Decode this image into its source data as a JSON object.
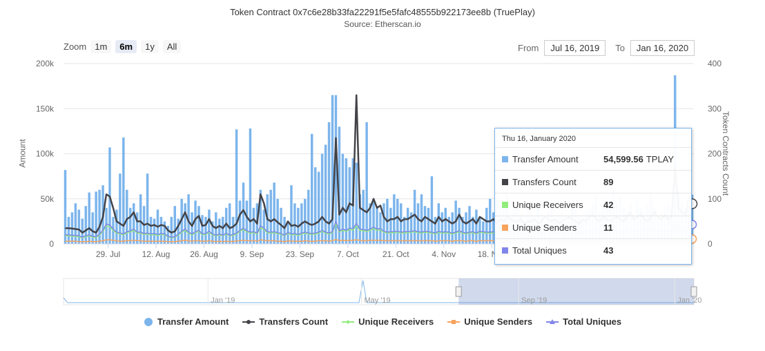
{
  "header": {
    "title": "Token Contract 0x7c6e28b33fa22291f5e5fafc48555b922173ee8b (TruePlay)",
    "subtitle": "Source: Etherscan.io"
  },
  "zoom": {
    "label": "Zoom",
    "buttons": [
      "1m",
      "6m",
      "1y",
      "All"
    ],
    "active": "6m"
  },
  "range": {
    "from_label": "From",
    "from_value": "Jul 16, 2019",
    "to_label": "To",
    "to_value": "Jan 16, 2020"
  },
  "tooltip": {
    "date": "Thu 16, January 2020",
    "rows": [
      {
        "label": "Transfer Amount",
        "value": "54,599.56",
        "unit": "TPLAY",
        "color": "#7cb5ec"
      },
      {
        "label": "Transfers Count",
        "value": "89",
        "unit": "",
        "color": "#434348"
      },
      {
        "label": "Unique Receivers",
        "value": "42",
        "unit": "",
        "color": "#90ed7d"
      },
      {
        "label": "Unique Senders",
        "value": "11",
        "unit": "",
        "color": "#f7a35c"
      },
      {
        "label": "Total Uniques",
        "value": "43",
        "unit": "",
        "color": "#8085e9"
      }
    ]
  },
  "legend": [
    {
      "label": "Transfer Amount",
      "color": "#7cb5ec",
      "kind": "circle"
    },
    {
      "label": "Transfers Count",
      "color": "#434348",
      "kind": "line"
    },
    {
      "label": "Unique Receivers",
      "color": "#90ed7d",
      "kind": "line"
    },
    {
      "label": "Unique Senders",
      "color": "#f7a35c",
      "kind": "line"
    },
    {
      "label": "Total Uniques",
      "color": "#8085e9",
      "kind": "line"
    }
  ],
  "chart_data": {
    "type": "bar",
    "ylabel_left": "Amount",
    "ylabel_right": "Token Contracts Count",
    "ylim_left": [
      0,
      200000
    ],
    "ylim_right": [
      0,
      400
    ],
    "yticks_left": [
      "0",
      "50k",
      "100k",
      "150k",
      "200k"
    ],
    "yticks_right": [
      "0",
      "100",
      "200",
      "300",
      "400"
    ],
    "xticks": [
      "29. Jul",
      "12. Aug",
      "26. Aug",
      "9. Sep",
      "23. Sep",
      "7. Oct",
      "21. Oct",
      "4. Nov",
      "18. Nov"
    ],
    "navigator_labels": [
      "Jan '19",
      "May '19",
      "Sep '19",
      "Jan '20"
    ],
    "grid": true,
    "legend_position": "bottom",
    "x_start": "2019-07-16",
    "x_end": "2020-01-16",
    "series": [
      {
        "name": "Transfer Amount",
        "axis": "left",
        "type": "bar",
        "values": [
          82000,
          30000,
          35000,
          45000,
          38000,
          28000,
          42000,
          57000,
          35000,
          58000,
          60000,
          65000,
          40000,
          107000,
          30000,
          38000,
          78000,
          118000,
          60000,
          40000,
          45000,
          35000,
          55000,
          42000,
          78000,
          30000,
          28000,
          38000,
          30000,
          25000,
          20000,
          30000,
          42000,
          28000,
          50000,
          45000,
          55000,
          35000,
          48000,
          42000,
          32000,
          30000,
          38000,
          25000,
          35000,
          28000,
          30000,
          40000,
          45000,
          30000,
          127000,
          48000,
          68000,
          48000,
          128000,
          40000,
          45000,
          60000,
          38000,
          55000,
          60000,
          68000,
          50000,
          40000,
          30000,
          25000,
          65000,
          45000,
          40000,
          45000,
          50000,
          60000,
          122000,
          85000,
          80000,
          100000,
          110000,
          135000,
          165000,
          165000,
          130000,
          100000,
          95000,
          85000,
          95000,
          90000,
          55000,
          60000,
          135000,
          45000,
          50000,
          40000,
          35000,
          45000,
          50000,
          40000,
          55000,
          50000,
          45000,
          30000,
          40000,
          35000,
          60000,
          45000,
          55000,
          42000,
          40000,
          75000,
          30000,
          45000,
          35000,
          40000,
          30000,
          35000,
          48000,
          40000,
          30000,
          35000,
          42000,
          30000,
          38000,
          30000,
          25000,
          40000,
          50000,
          35000,
          55000,
          40000,
          45000,
          55000,
          30000,
          35000,
          40000,
          30000,
          25000,
          45000,
          35000,
          30000,
          42000,
          30000,
          25000,
          35000,
          40000,
          28000,
          30000,
          35000,
          25000,
          30000,
          45000,
          38000,
          30000,
          25000,
          35000,
          40000,
          45000,
          55000,
          35000,
          40000,
          50000,
          42000,
          60000,
          45000,
          55000,
          40000,
          35000,
          45000,
          30000,
          50000,
          40000,
          35000,
          45000,
          55000,
          40000,
          30000,
          35000,
          42000,
          45000,
          38000,
          187000,
          60000,
          45000,
          40000,
          50000,
          54600
        ]
      },
      {
        "name": "Transfers Count",
        "axis": "right",
        "type": "line",
        "values": [
          35,
          35,
          34,
          33,
          32,
          25,
          30,
          35,
          28,
          25,
          38,
          60,
          110,
          105,
          80,
          50,
          45,
          40,
          55,
          60,
          70,
          50,
          50,
          42,
          45,
          40,
          42,
          38,
          42,
          40,
          30,
          25,
          28,
          40,
          55,
          70,
          50,
          40,
          55,
          62,
          40,
          42,
          55,
          40,
          35,
          40,
          35,
          45,
          35,
          38,
          45,
          65,
          75,
          60,
          50,
          55,
          45,
          110,
          90,
          55,
          50,
          55,
          48,
          42,
          35,
          50,
          40,
          42,
          38,
          45,
          50,
          45,
          42,
          45,
          50,
          60,
          50,
          45,
          55,
          235,
          65,
          80,
          70,
          90,
          85,
          330,
          80,
          75,
          70,
          80,
          100,
          80,
          85,
          60,
          50,
          55,
          55,
          60,
          50,
          55,
          55,
          60,
          65,
          55,
          50,
          60,
          55,
          50,
          45,
          60,
          50,
          55,
          50,
          45,
          50,
          65,
          50,
          45,
          50,
          55,
          45,
          60,
          55,
          50,
          50,
          55,
          45,
          55,
          50,
          60,
          55,
          50,
          50,
          55,
          45,
          50,
          50,
          55,
          45,
          50,
          60,
          55,
          50,
          55,
          45,
          50,
          55,
          60,
          55,
          50,
          45,
          55,
          50,
          60,
          65,
          55,
          50,
          60,
          55,
          50,
          55,
          60,
          55,
          50,
          60,
          70,
          55,
          60,
          65,
          55,
          50,
          60,
          70,
          60,
          55,
          65,
          55,
          60,
          170,
          80,
          70,
          65,
          90,
          89
        ]
      },
      {
        "name": "Unique Receivers",
        "axis": "right",
        "type": "line",
        "values": [
          18,
          18,
          17,
          17,
          16,
          14,
          16,
          18,
          15,
          14,
          20,
          28,
          40,
          38,
          30,
          24,
          22,
          20,
          25,
          27,
          30,
          24,
          24,
          21,
          22,
          20,
          21,
          19,
          21,
          20,
          16,
          14,
          15,
          20,
          26,
          30,
          24,
          20,
          25,
          28,
          20,
          21,
          26,
          20,
          18,
          20,
          18,
          22,
          18,
          19,
          22,
          28,
          32,
          27,
          24,
          25,
          22,
          36,
          32,
          25,
          24,
          25,
          23,
          21,
          18,
          24,
          20,
          21,
          19,
          22,
          24,
          22,
          21,
          22,
          24,
          28,
          24,
          22,
          25,
          45,
          27,
          30,
          28,
          32,
          31,
          40,
          30,
          29,
          28,
          30,
          34,
          30,
          31,
          26,
          24,
          25,
          25,
          26,
          24,
          25,
          25,
          26,
          27,
          25,
          24,
          26,
          25,
          24,
          22,
          26,
          24,
          25,
          24,
          22,
          24,
          27,
          24,
          22,
          24,
          25,
          22,
          26,
          25,
          24,
          24,
          25,
          22,
          25,
          24,
          26,
          25,
          24,
          24,
          25,
          22,
          24,
          24,
          25,
          22,
          24,
          26,
          25,
          24,
          25,
          22,
          24,
          25,
          26,
          25,
          24,
          22,
          25,
          24,
          26,
          27,
          25,
          24,
          26,
          25,
          24,
          25,
          26,
          25,
          24,
          26,
          28,
          25,
          26,
          27,
          25,
          24,
          26,
          28,
          26,
          25,
          27,
          25,
          26,
          40,
          30,
          28,
          27,
          34,
          42
        ]
      },
      {
        "name": "Unique Senders",
        "axis": "right",
        "type": "line",
        "values": [
          6,
          6,
          6,
          6,
          5,
          5,
          5,
          6,
          5,
          5,
          6,
          7,
          9,
          9,
          8,
          7,
          6,
          6,
          7,
          7,
          8,
          7,
          7,
          6,
          6,
          6,
          6,
          6,
          6,
          6,
          5,
          5,
          5,
          6,
          7,
          8,
          7,
          6,
          7,
          7,
          6,
          6,
          7,
          6,
          5,
          6,
          5,
          6,
          5,
          6,
          6,
          7,
          8,
          7,
          7,
          7,
          6,
          9,
          8,
          7,
          7,
          7,
          6,
          6,
          5,
          7,
          6,
          6,
          6,
          6,
          7,
          6,
          6,
          6,
          7,
          7,
          7,
          6,
          7,
          10,
          7,
          8,
          7,
          8,
          8,
          9,
          8,
          7,
          7,
          8,
          8,
          8,
          8,
          7,
          7,
          7,
          7,
          7,
          7,
          7,
          7,
          7,
          7,
          7,
          7,
          7,
          7,
          7,
          6,
          7,
          7,
          7,
          7,
          6,
          7,
          7,
          7,
          6,
          7,
          7,
          6,
          7,
          7,
          7,
          7,
          7,
          6,
          7,
          7,
          7,
          7,
          7,
          7,
          7,
          6,
          7,
          7,
          7,
          6,
          7,
          7,
          7,
          7,
          7,
          6,
          7,
          7,
          7,
          7,
          7,
          6,
          7,
          7,
          7,
          7,
          7,
          7,
          7,
          7,
          7,
          7,
          7,
          7,
          7,
          7,
          8,
          7,
          7,
          7,
          7,
          7,
          7,
          8,
          7,
          7,
          7,
          7,
          7,
          10,
          8,
          8,
          8,
          9,
          11
        ]
      },
      {
        "name": "Total Uniques",
        "axis": "right",
        "type": "line",
        "values": [
          20,
          20,
          19,
          19,
          18,
          15,
          18,
          20,
          17,
          16,
          22,
          30,
          44,
          42,
          33,
          26,
          24,
          22,
          27,
          29,
          33,
          26,
          26,
          23,
          24,
          22,
          23,
          21,
          23,
          22,
          17,
          15,
          16,
          22,
          28,
          33,
          26,
          22,
          27,
          30,
          22,
          23,
          28,
          22,
          19,
          22,
          19,
          24,
          19,
          21,
          24,
          30,
          35,
          29,
          26,
          27,
          24,
          40,
          35,
          27,
          26,
          27,
          25,
          23,
          19,
          26,
          22,
          23,
          21,
          24,
          26,
          24,
          23,
          24,
          26,
          30,
          26,
          24,
          27,
          50,
          29,
          33,
          30,
          35,
          34,
          45,
          33,
          32,
          30,
          33,
          37,
          33,
          34,
          28,
          26,
          27,
          27,
          28,
          26,
          27,
          27,
          28,
          29,
          27,
          26,
          28,
          27,
          26,
          24,
          28,
          26,
          27,
          26,
          24,
          26,
          29,
          26,
          24,
          26,
          27,
          24,
          28,
          27,
          26,
          26,
          27,
          24,
          27,
          26,
          28,
          27,
          26,
          26,
          27,
          24,
          26,
          26,
          27,
          24,
          26,
          28,
          27,
          26,
          27,
          24,
          26,
          27,
          28,
          27,
          26,
          24,
          27,
          26,
          28,
          29,
          27,
          26,
          28,
          27,
          26,
          27,
          28,
          27,
          26,
          28,
          30,
          27,
          28,
          29,
          27,
          26,
          28,
          30,
          28,
          27,
          29,
          27,
          28,
          44,
          33,
          30,
          29,
          37,
          43
        ]
      }
    ]
  }
}
